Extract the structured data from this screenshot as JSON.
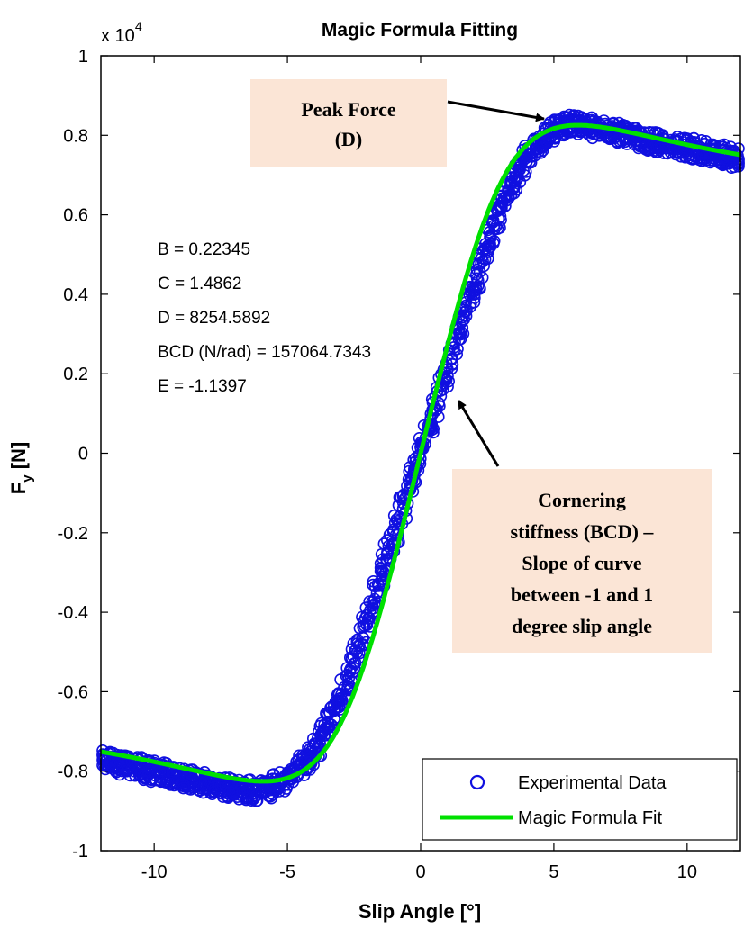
{
  "chart_data": {
    "type": "scatter",
    "title": "Magic Formula Fitting",
    "xlabel": "Slip Angle [°]",
    "ylabel_main": "F",
    "ylabel_sub": "y",
    "ylabel_unit": " [N]",
    "y_exponent_label": "x 10",
    "y_exponent_power": "4",
    "xlim": [
      -12,
      12
    ],
    "ylim": [
      -10000,
      10000
    ],
    "x_ticks": [
      -10,
      -5,
      0,
      5,
      10
    ],
    "x_tick_labels": [
      "-10",
      "-5",
      "0",
      "5",
      "10"
    ],
    "y_ticks": [
      -10000,
      -8000,
      -6000,
      -4000,
      -2000,
      0,
      2000,
      4000,
      6000,
      8000,
      10000
    ],
    "y_tick_labels": [
      "-1",
      "-0.8",
      "-0.6",
      "-0.4",
      "-0.2",
      "0",
      "0.2",
      "0.4",
      "0.6",
      "0.8",
      "1"
    ],
    "series": [
      {
        "name": "Experimental Data",
        "marker": "circle",
        "color": "#1010e0",
        "x": [
          -12,
          -11,
          -10,
          -9,
          -8,
          -7,
          -6,
          -5,
          -4,
          -3,
          -2,
          -1,
          -0.5,
          0,
          0.5,
          1,
          2,
          3,
          4,
          5,
          6,
          7,
          8,
          9,
          10,
          11,
          12
        ],
        "y": [
          -7700,
          -7850,
          -8000,
          -8150,
          -8300,
          -8450,
          -8500,
          -8200,
          -7500,
          -6200,
          -4200,
          -2100,
          -1000,
          0,
          1000,
          2100,
          4200,
          6200,
          7500,
          8200,
          8300,
          8100,
          7950,
          7800,
          7700,
          7550,
          7400
        ]
      },
      {
        "name": "Magic Formula Fit",
        "marker": "line",
        "color": "#00e000",
        "B": 0.22345,
        "C": 1.4862,
        "D": 8254.5892,
        "E": -1.1397
      }
    ],
    "parameters": [
      "B = 0.22345",
      "C = 1.4862",
      "D = 8254.5892",
      "BCD (N/rad) = 157064.7343",
      "E = -1.1397"
    ],
    "annotations": [
      {
        "lines": [
          "Peak Force",
          "(D)"
        ]
      },
      {
        "lines": [
          "Cornering",
          "stiffness (BCD) –",
          "Slope of curve",
          "between -1 and 1",
          "degree slip angle"
        ]
      }
    ],
    "legend": {
      "position": "bottom-right",
      "entries": [
        "Experimental Data",
        "Magic Formula Fit"
      ]
    },
    "colors": {
      "axes": "#000000",
      "annotation_box": "#fbe5d6",
      "data": "#1010e0",
      "fit": "#00e000"
    }
  }
}
